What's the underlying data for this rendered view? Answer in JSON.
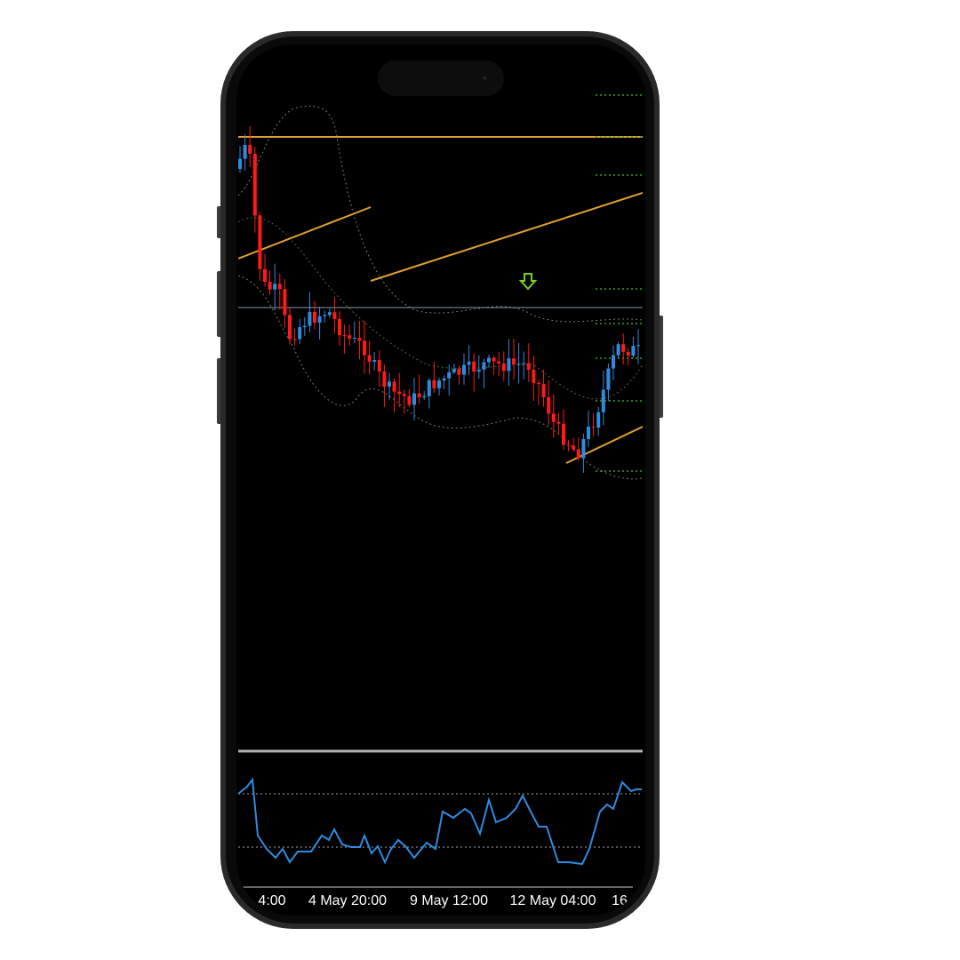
{
  "screen": {
    "x_axis_labels": [
      "4:00",
      "4 May 20:00",
      "9 May 12:00",
      "12 May 04:00",
      "16"
    ]
  }
}
